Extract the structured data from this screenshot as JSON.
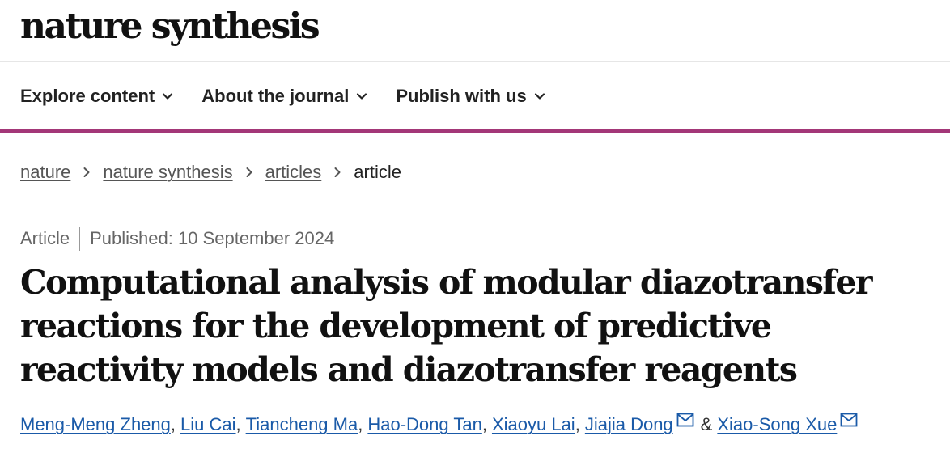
{
  "header": {
    "logo": "nature synthesis"
  },
  "nav": {
    "items": [
      {
        "label": "Explore content",
        "icon": "chevron-down-icon"
      },
      {
        "label": "About the journal",
        "icon": "chevron-down-icon"
      },
      {
        "label": "Publish with us",
        "icon": "chevron-down-icon"
      }
    ]
  },
  "colors": {
    "accent_bar": "#a33778",
    "link": "#1a5aa8"
  },
  "breadcrumb": {
    "items": [
      "nature",
      "nature synthesis",
      "articles"
    ],
    "current": "article",
    "separator_icon": "chevron-right-icon"
  },
  "article": {
    "type": "Article",
    "published": "Published: 10 September 2024",
    "title": "Computational analysis of modular diazotransfer reactions for the development of predictive reactivity models and diazotransfer reagents",
    "authors": [
      "Meng-Meng Zheng",
      "Liu Cai",
      "Tiancheng Ma",
      "Hao-Dong Tan",
      "Xiaoyu Lai",
      "Jiajia Dong",
      "Xiao-Song Xue"
    ],
    "author_separator": ",",
    "last_separator": "&",
    "corresponding_icon": "mail-icon"
  }
}
